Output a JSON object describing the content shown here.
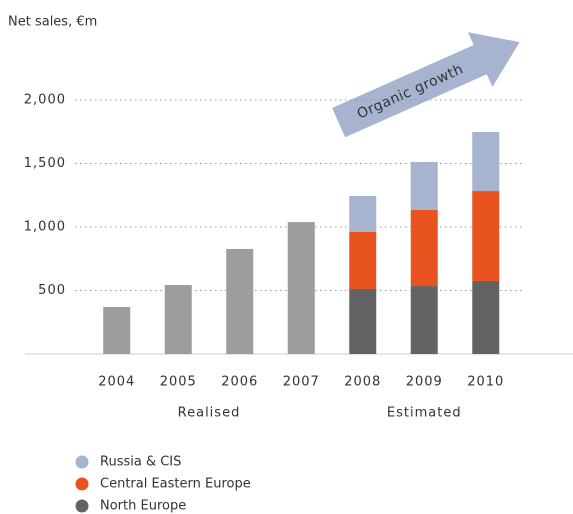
{
  "chart_data": {
    "type": "stacked_bar",
    "y_axis_label": "Net sales, €m",
    "annotation": "Organic growth",
    "categories": [
      "2004",
      "2005",
      "2006",
      "2007",
      "2008",
      "2009",
      "2010"
    ],
    "group_labels": [
      "Realised",
      "Estimated"
    ],
    "series": [
      {
        "color": "#9d9d9d",
        "values": [
          370,
          543,
          827,
          1039,
          null,
          null,
          null
        ]
      },
      {
        "name": "North Europe",
        "color": "#636363",
        "values": [
          null,
          null,
          null,
          null,
          512,
          535,
          575
        ]
      },
      {
        "name": "Central Eastern Europe",
        "color": "#e9531f",
        "values": [
          null,
          null,
          null,
          null,
          449,
          599,
          708
        ]
      },
      {
        "name": "Russia & CIS",
        "color": "#a6b4d0",
        "values": [
          null,
          null,
          null,
          null,
          283,
          378,
          465
        ]
      }
    ],
    "ylim": [
      0,
      2000
    ],
    "yticks": [
      500,
      {
        "value": 1000,
        "label": "1,000"
      },
      {
        "value": 1500,
        "label": "1,500"
      },
      {
        "value": 2000,
        "label": "2,000"
      }
    ],
    "grid": true
  }
}
